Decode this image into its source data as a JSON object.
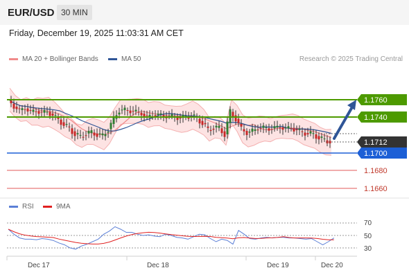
{
  "header": {
    "symbol": "EUR/USD",
    "timeframe": "30 MIN"
  },
  "datetime": "Friday, December 19, 2025 11:03:31 AM CET",
  "legend": {
    "ma20": {
      "label": "MA 20 + Bollinger Bands",
      "color": "#f08a8a"
    },
    "ma50": {
      "label": "MA 50",
      "color": "#2f5597"
    },
    "source": "Research © 2025 Trading Central"
  },
  "rsi_legend": {
    "rsi": {
      "label": "RSI",
      "color": "#5b7fd6"
    },
    "ma9": {
      "label": "9MA",
      "color": "#e02020"
    }
  },
  "price_levels": {
    "resistance": [
      "1.1760",
      "1.1740"
    ],
    "current": "1.1712",
    "pivot": "1.1700",
    "support": [
      "1.1680",
      "1.1660"
    ]
  },
  "rsi_axis": [
    "70",
    "50",
    "30"
  ],
  "x_labels": [
    "Dec 17",
    "Dec 18",
    "Dec 19",
    "Dec 20"
  ],
  "colors": {
    "resistance": "#4d9a00",
    "pivot": "#1c5fd6",
    "support": "#e05a5a",
    "current": "#333333",
    "arrow": "#2f5597"
  }
}
